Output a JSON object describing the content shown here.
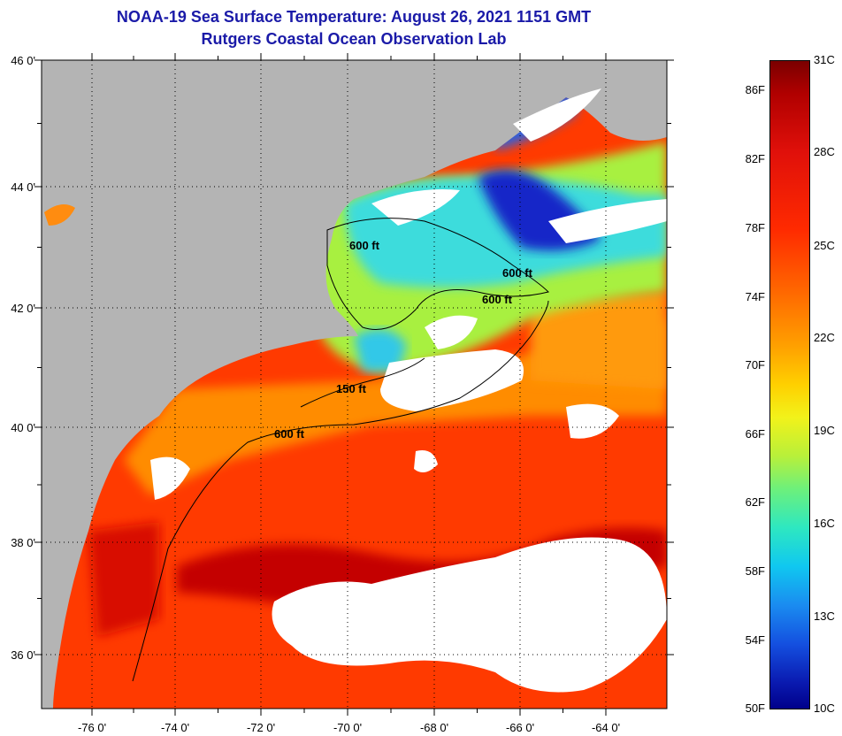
{
  "title": {
    "line1": "NOAA-19 Sea Surface Temperature:  August 26, 2021 1151 GMT",
    "line2": "Rutgers Coastal Ocean Observation Lab"
  },
  "map": {
    "lat_labels": [
      "46 0'",
      "44 0'",
      "42 0'",
      "40 0'",
      "38 0'",
      "36 0'"
    ],
    "lon_labels": [
      "-76 0'",
      "-74 0'",
      "-72 0'",
      "-70 0'",
      "-68 0'",
      "-66 0'",
      "-64 0'"
    ],
    "contour_labels": [
      "600 ft",
      "600 ft",
      "600 ft",
      "150 ft",
      "600 ft"
    ],
    "colors": {
      "land": "#b4b4b4",
      "cloud": "#ffffff",
      "warm_core": "#c80000",
      "warm": "#ff3200",
      "orange": "#ff8c00",
      "yellow_green": "#b4f03c",
      "cyan": "#3cdcdc",
      "deep_blue": "#1428c8"
    }
  },
  "colorbar": {
    "fahrenheit_labels": [
      "86F",
      "82F",
      "78F",
      "74F",
      "70F",
      "66F",
      "62F",
      "58F",
      "54F",
      "50F"
    ],
    "celsius_labels": [
      "31C",
      "28C",
      "25C",
      "22C",
      "19C",
      "16C",
      "13C",
      "10C"
    ]
  }
}
